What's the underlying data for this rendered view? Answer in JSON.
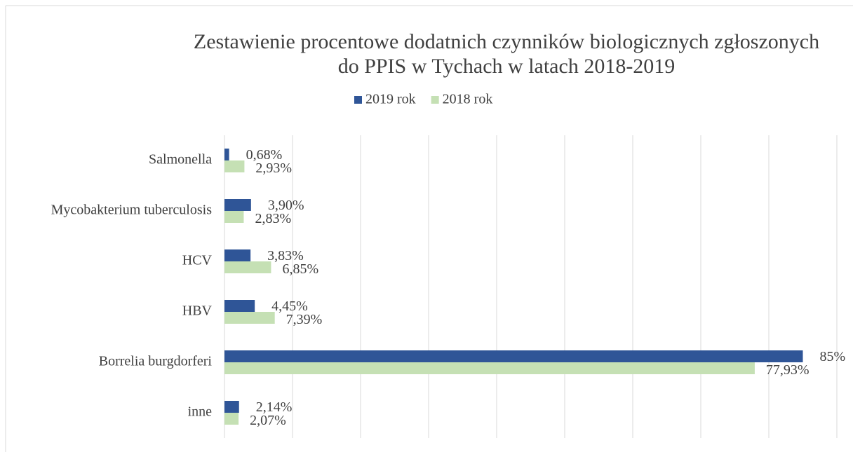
{
  "chart_data": {
    "type": "bar",
    "orientation": "horizontal",
    "title": [
      "Zestawienie procentowe dodatnich czynników biologicznych zgłoszonych",
      "do PPIS w Tychach w latach 2018-2019"
    ],
    "categories": [
      "Salmonella",
      "Mycobakterium tuberculosis",
      "HCV",
      "HBV",
      "Borrelia burgdorferi",
      "inne"
    ],
    "series": [
      {
        "name": "2019 rok",
        "color": "#2f5597",
        "values": [
          0.68,
          3.9,
          3.83,
          4.45,
          85,
          2.14
        ],
        "value_labels": [
          "0,68%",
          "3,90%",
          "3,83%",
          "4,45%",
          "85%",
          "2,14%"
        ]
      },
      {
        "name": "2018 rok",
        "color": "#c5e0b4",
        "values": [
          2.93,
          2.83,
          6.85,
          7.39,
          77.93,
          2.07
        ],
        "value_labels": [
          "2,93%",
          "2,83%",
          "6,85%",
          "7,39%",
          "77,93%",
          "2,07%"
        ]
      }
    ],
    "xlim": [
      0,
      90
    ],
    "xticks": [
      0,
      10,
      20,
      30,
      40,
      50,
      60,
      70,
      80,
      90
    ],
    "grid": true,
    "legend": "top"
  }
}
